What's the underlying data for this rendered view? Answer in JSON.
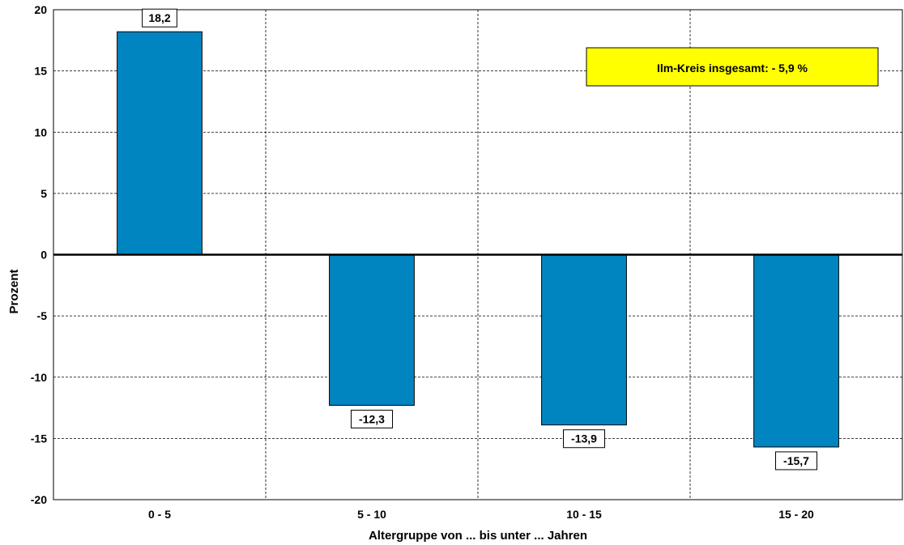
{
  "chart_data": {
    "type": "bar",
    "categories": [
      "0 - 5",
      "5 - 10",
      "10 - 15",
      "15 - 20"
    ],
    "values": [
      18.2,
      -12.3,
      -13.9,
      -15.7
    ],
    "data_labels": [
      "18,2",
      "-12,3",
      "-13,9",
      "-15,7"
    ],
    "title": "",
    "xlabel": "Altergruppe von ... bis unter ... Jahren",
    "ylabel": "Prozent",
    "ylim": [
      -20,
      20
    ],
    "yticks": [
      20,
      15,
      10,
      5,
      0,
      -5,
      -10,
      -15,
      -20
    ],
    "ytick_labels": [
      "20",
      "15",
      "10",
      "5",
      "0",
      "-5",
      "-10",
      "-15",
      "-20"
    ],
    "grid": true,
    "bar_color": "#0085C0",
    "annotation": {
      "text": "Ilm-Kreis insgesamt: - 5,9 %",
      "background": "#FFFF00",
      "position": "top-right"
    }
  }
}
